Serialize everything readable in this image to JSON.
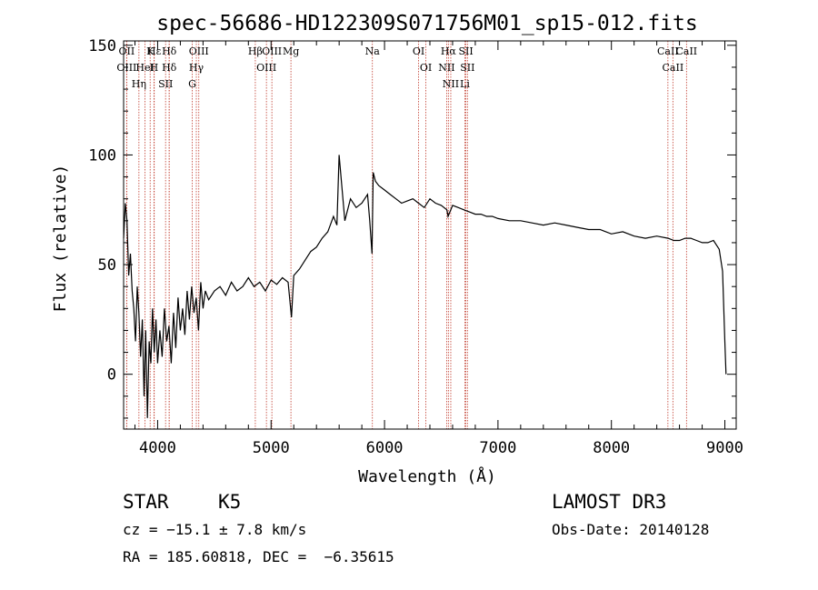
{
  "chart_data": {
    "type": "line",
    "title": "spec-56686-HD122309S071756M01_sp15-012.fits",
    "xlabel": "Wavelength (Å)",
    "ylabel": "Flux (relative)",
    "xlim": [
      3700,
      9100
    ],
    "ylim": [
      -25,
      152
    ],
    "xticks": [
      4000,
      5000,
      6000,
      7000,
      8000,
      9000
    ],
    "yticks": [
      0,
      50,
      100,
      150
    ],
    "grid": false,
    "series": [
      {
        "name": "flux",
        "x": [
          3700,
          3715,
          3730,
          3745,
          3760,
          3775,
          3790,
          3805,
          3820,
          3835,
          3850,
          3865,
          3880,
          3895,
          3910,
          3925,
          3940,
          3955,
          3970,
          3985,
          4000,
          4020,
          4040,
          4060,
          4080,
          4100,
          4120,
          4140,
          4160,
          4180,
          4200,
          4220,
          4240,
          4260,
          4280,
          4300,
          4320,
          4340,
          4360,
          4380,
          4400,
          4420,
          4450,
          4500,
          4550,
          4600,
          4650,
          4700,
          4750,
          4800,
          4850,
          4900,
          4950,
          5000,
          5050,
          5100,
          5150,
          5180,
          5200,
          5250,
          5300,
          5350,
          5400,
          5450,
          5500,
          5550,
          5580,
          5600,
          5650,
          5700,
          5750,
          5800,
          5850,
          5870,
          5890,
          5900,
          5920,
          5950,
          6000,
          6050,
          6100,
          6150,
          6200,
          6250,
          6300,
          6350,
          6400,
          6450,
          6500,
          6550,
          6560,
          6600,
          6650,
          6700,
          6750,
          6800,
          6850,
          6900,
          6950,
          7000,
          7100,
          7200,
          7300,
          7400,
          7500,
          7600,
          7700,
          7800,
          7900,
          8000,
          8100,
          8200,
          8300,
          8400,
          8500,
          8550,
          8600,
          8650,
          8700,
          8750,
          8800,
          8850,
          8900,
          8950,
          8980,
          9000,
          9010
        ],
        "values": [
          62,
          78,
          70,
          45,
          55,
          38,
          30,
          15,
          40,
          28,
          8,
          25,
          -10,
          20,
          -20,
          15,
          5,
          30,
          10,
          25,
          5,
          20,
          8,
          30,
          15,
          22,
          5,
          28,
          12,
          35,
          20,
          30,
          18,
          38,
          25,
          40,
          28,
          35,
          20,
          42,
          30,
          38,
          34,
          38,
          40,
          36,
          42,
          38,
          40,
          44,
          40,
          42,
          38,
          43,
          41,
          44,
          42,
          26,
          45,
          48,
          52,
          56,
          58,
          62,
          65,
          72,
          68,
          100,
          70,
          80,
          76,
          78,
          82,
          70,
          55,
          92,
          88,
          86,
          84,
          82,
          80,
          78,
          79,
          80,
          78,
          76,
          80,
          78,
          77,
          75,
          72,
          77,
          76,
          75,
          74,
          73,
          73,
          72,
          72,
          71,
          70,
          70,
          69,
          68,
          69,
          68,
          67,
          66,
          66,
          64,
          65,
          63,
          62,
          63,
          62,
          61,
          61,
          62,
          62,
          61,
          60,
          60,
          61,
          57,
          47,
          15,
          0
        ],
        "color": "#000000"
      }
    ],
    "line_markers": [
      {
        "label": "Hδ",
        "wavelength": 4102
      },
      {
        "label": "OII",
        "wavelength": 3727
      },
      {
        "label": "OIII",
        "wavelength": 3727
      },
      {
        "label": "Hε",
        "wavelength": 3970
      },
      {
        "label": "Hη",
        "wavelength": 3835
      },
      {
        "label": "H",
        "wavelength": 3968
      },
      {
        "label": "K",
        "wavelength": 3934
      },
      {
        "label": "HeI",
        "wavelength": 3889
      },
      {
        "label": "SII",
        "wavelength": 4070
      },
      {
        "label": "Hδ",
        "wavelength": 4102
      },
      {
        "label": "OIII",
        "wavelength": 4363
      },
      {
        "label": "Hγ",
        "wavelength": 4341
      },
      {
        "label": "G",
        "wavelength": 4305
      },
      {
        "label": "Hβ",
        "wavelength": 4861
      },
      {
        "label": "OIII",
        "wavelength": 4959
      },
      {
        "label": "OIII",
        "wavelength": 5007
      },
      {
        "label": "Mg",
        "wavelength": 5175
      },
      {
        "label": "Na",
        "wavelength": 5893
      },
      {
        "label": "OI",
        "wavelength": 6300
      },
      {
        "label": "OI",
        "wavelength": 6364
      },
      {
        "label": "Hα",
        "wavelength": 6563
      },
      {
        "label": "NII",
        "wavelength": 6548
      },
      {
        "label": "NII",
        "wavelength": 6584
      },
      {
        "label": "SII",
        "wavelength": 6717
      },
      {
        "label": "SII",
        "wavelength": 6731
      },
      {
        "label": "Li",
        "wavelength": 6708
      },
      {
        "label": "CaII",
        "wavelength": 8498
      },
      {
        "label": "CaII",
        "wavelength": 8542
      },
      {
        "label": "CaII",
        "wavelength": 8662
      }
    ]
  },
  "info": {
    "class": "STAR",
    "subclass": "K5",
    "survey": "LAMOST DR3",
    "cz": "cz = −15.1 ± 7.8 km/s",
    "obs_date": "Obs-Date: 20140128",
    "radec": "RA = 185.60818, DEC =  −6.35615"
  }
}
